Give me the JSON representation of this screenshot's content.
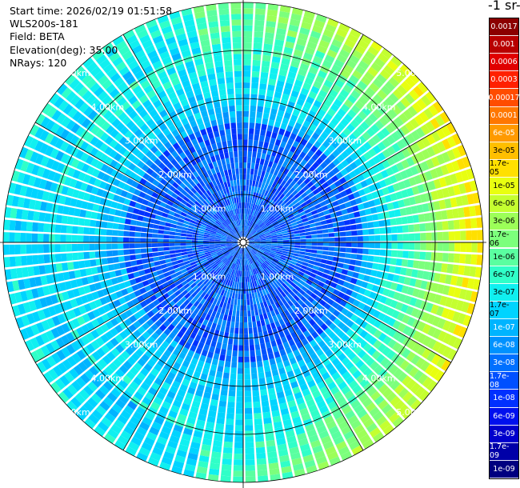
{
  "info": {
    "start_time": "Start time: 2026/02/19 01:51:58",
    "instrument": "WLS200s-181",
    "field": "Field: BETA",
    "elevation": "Elevation(deg): 35.00",
    "nrays": "NRays: 120"
  },
  "colorbar": {
    "title": "-1 sr-",
    "labels": [
      "0.0017",
      "0.001",
      "0.0006",
      "0.0003",
      "0.00017",
      "0.0001",
      "6e-05",
      "3e-05",
      "1.7e-05",
      "1e-05",
      "6e-06",
      "3e-06",
      "1.7e-06",
      "1e-06",
      "6e-07",
      "3e-07",
      "1.7e-07",
      "1e-07",
      "6e-08",
      "3e-08",
      "1.7e-08",
      "1e-08",
      "6e-09",
      "3e-09",
      "1.7e-09",
      "1e-09"
    ],
    "colors": [
      "#8b0000",
      "#b80000",
      "#e00000",
      "#ff2000",
      "#ff4c00",
      "#ff7700",
      "#ff9a00",
      "#ffbf00",
      "#ffe000",
      "#e8ff10",
      "#c4ff30",
      "#9cff58",
      "#7cff7c",
      "#5affa0",
      "#30ffc8",
      "#10f0f0",
      "#00d4ff",
      "#00b4ff",
      "#0092ff",
      "#0070ff",
      "#0050ff",
      "#0030ff",
      "#0010ee",
      "#0000cc",
      "#0000a8",
      "#000080"
    ]
  },
  "range_labels": [
    "1.00km",
    "2.00km",
    "3.00km",
    "4.00km",
    "5.00km"
  ],
  "scan": {
    "rays": 120
  }
}
